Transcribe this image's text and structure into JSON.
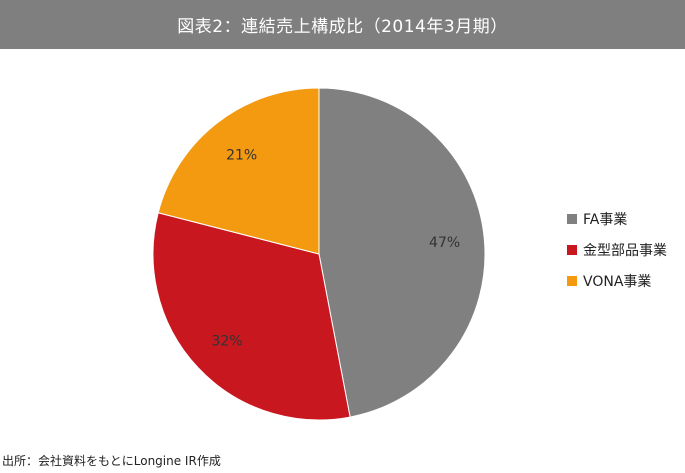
{
  "title": "図表2：連結売上構成比（2014年3月期）",
  "source": "出所：会社資料をもとにLongine IR作成",
  "chart_data": {
    "type": "pie",
    "title": "図表2：連結売上構成比（2014年3月期）",
    "start_angle_deg": 0,
    "direction": "clockwise",
    "legend_position": "right",
    "slices": [
      {
        "name": "FA事業",
        "value": 47,
        "label": "47%",
        "color": "#808080"
      },
      {
        "name": "金型部品事業",
        "value": 32,
        "label": "32%",
        "color": "#c8171e"
      },
      {
        "name": "VONA事業",
        "value": 21,
        "label": "21%",
        "color": "#f39a10"
      }
    ]
  }
}
